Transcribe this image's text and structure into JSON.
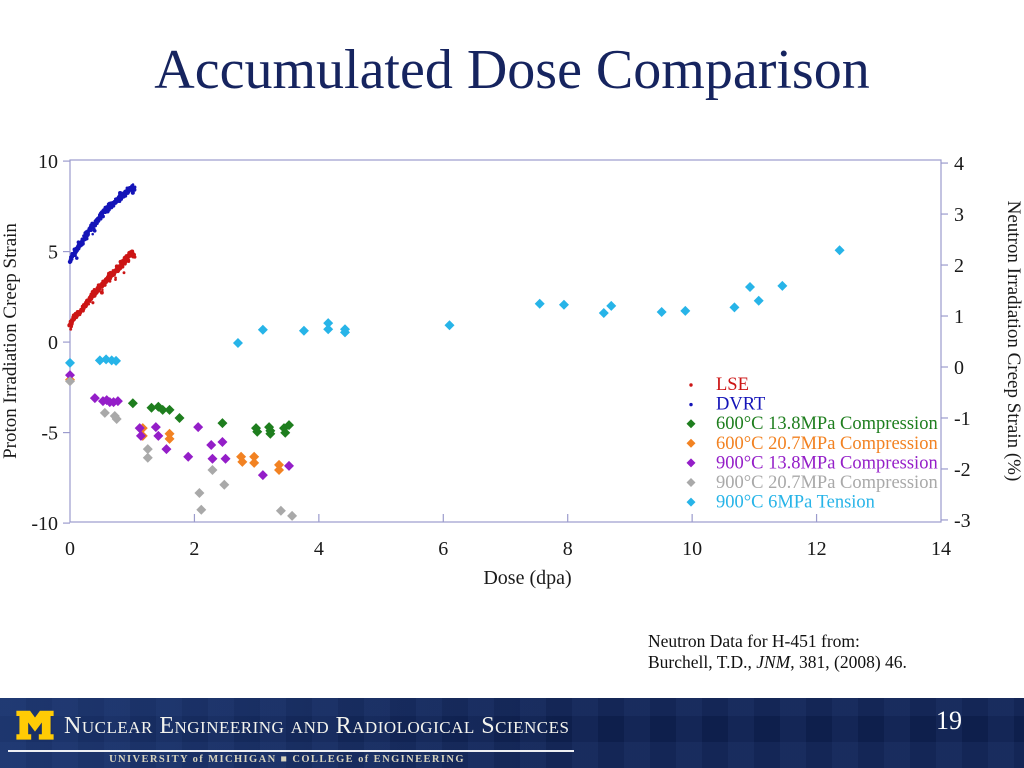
{
  "slide": {
    "title": "Accumulated Dose Comparison",
    "page_number": "19",
    "title_color": "#16245f",
    "citation": {
      "line1": "Neutron Data for H-451 from:",
      "line2_prefix": "Burchell, T.D., ",
      "line2_italic": "JNM",
      "line2_suffix": ", 381, (2008) 46."
    },
    "footer": {
      "department": "Nuclear Engineering and Radiological Sciences",
      "university_line": "UNIVERSITY of MICHIGAN   ■   COLLEGE of ENGINEERING",
      "logo": "university-of-michigan-block-m",
      "band_color": "#0e1f4c",
      "maize": "#ffcb05"
    }
  },
  "chart_data": {
    "type": "scatter",
    "title": "",
    "xlabel": "Dose (dpa)",
    "grid": false,
    "legend_position": "inside-right",
    "frame_color": "#9b9bcd",
    "text_color": "#1a1a1a",
    "xlim": [
      0,
      14
    ],
    "x_ticks": [
      0,
      2,
      4,
      6,
      8,
      10,
      12,
      14
    ],
    "left_axis": {
      "label": "Proton Irradiation Creep Strain",
      "ticks": [
        10,
        5,
        0,
        -5,
        -10
      ],
      "lim": [
        10.06,
        -9.94
      ]
    },
    "right_axis": {
      "label": "Neutron Irradiation Creep Strain (%)",
      "ticks": [
        4,
        3,
        2,
        1,
        0,
        -1,
        -2,
        -3
      ],
      "lim": [
        4.06,
        -3.04
      ]
    },
    "series": [
      {
        "name": "LSE",
        "color": "#cc1515",
        "axis": "left",
        "render": "noisy-line",
        "marker": "dot",
        "points": [
          [
            0,
            1.0
          ],
          [
            0.05,
            1.25
          ],
          [
            0.1,
            1.45
          ],
          [
            0.15,
            1.62
          ],
          [
            0.2,
            1.85
          ],
          [
            0.25,
            2.1
          ],
          [
            0.3,
            2.35
          ],
          [
            0.35,
            2.55
          ],
          [
            0.4,
            2.72
          ],
          [
            0.45,
            2.95
          ],
          [
            0.5,
            3.1
          ],
          [
            0.55,
            3.3
          ],
          [
            0.6,
            3.5
          ],
          [
            0.65,
            3.65
          ],
          [
            0.7,
            3.82
          ],
          [
            0.75,
            3.95
          ],
          [
            0.8,
            4.15
          ],
          [
            0.85,
            4.35
          ],
          [
            0.9,
            4.55
          ],
          [
            0.95,
            4.8
          ],
          [
            1.0,
            4.95
          ],
          [
            1.03,
            4.72
          ]
        ]
      },
      {
        "name": "DVRT",
        "color": "#1414b8",
        "axis": "left",
        "render": "noisy-line",
        "marker": "dot",
        "points": [
          [
            0,
            4.55
          ],
          [
            0.05,
            4.8
          ],
          [
            0.1,
            5.05
          ],
          [
            0.15,
            5.3
          ],
          [
            0.2,
            5.6
          ],
          [
            0.25,
            5.85
          ],
          [
            0.3,
            6.1
          ],
          [
            0.35,
            6.35
          ],
          [
            0.4,
            6.55
          ],
          [
            0.45,
            6.8
          ],
          [
            0.5,
            7.0
          ],
          [
            0.55,
            7.2
          ],
          [
            0.6,
            7.4
          ],
          [
            0.65,
            7.55
          ],
          [
            0.7,
            7.7
          ],
          [
            0.75,
            7.85
          ],
          [
            0.8,
            8.0
          ],
          [
            0.85,
            8.15
          ],
          [
            0.9,
            8.3
          ],
          [
            0.95,
            8.45
          ],
          [
            1.0,
            8.55
          ],
          [
            1.03,
            8.48
          ]
        ]
      },
      {
        "name": "600°C 13.8MPa Compression",
        "color": "#1e7e1e",
        "axis": "right",
        "render": "diamond",
        "marker": "diamond",
        "points": [
          [
            1.01,
            -0.71
          ],
          [
            1.31,
            -0.8
          ],
          [
            1.42,
            -0.78
          ],
          [
            1.49,
            -0.84
          ],
          [
            1.6,
            -0.84
          ],
          [
            1.76,
            -1.0
          ],
          [
            2.45,
            -1.1
          ],
          [
            2.99,
            -1.2
          ],
          [
            3.01,
            -1.27
          ],
          [
            3.2,
            -1.18
          ],
          [
            3.22,
            -1.25
          ],
          [
            3.22,
            -1.31
          ],
          [
            3.44,
            -1.2
          ],
          [
            3.46,
            -1.29
          ],
          [
            3.52,
            -1.14
          ]
        ]
      },
      {
        "name": "600°C 20.7MPa Compression",
        "color": "#f28222",
        "axis": "right",
        "render": "diamond",
        "marker": "diamond",
        "points": [
          [
            0,
            -0.25
          ],
          [
            1.17,
            -1.2
          ],
          [
            1.17,
            -1.35
          ],
          [
            1.6,
            -1.31
          ],
          [
            1.6,
            -1.41
          ],
          [
            2.75,
            -1.76
          ],
          [
            2.77,
            -1.86
          ],
          [
            2.96,
            -1.76
          ],
          [
            2.96,
            -1.88
          ],
          [
            3.36,
            -1.92
          ],
          [
            3.36,
            -2.02
          ]
        ]
      },
      {
        "name": "900°C 13.8MPa Compression",
        "color": "#941ec8",
        "axis": "right",
        "render": "diamond",
        "marker": "diamond",
        "points": [
          [
            0,
            -0.16
          ],
          [
            0.4,
            -0.61
          ],
          [
            0.53,
            -0.67
          ],
          [
            0.59,
            -0.65
          ],
          [
            0.64,
            -0.69
          ],
          [
            0.7,
            -0.69
          ],
          [
            0.77,
            -0.67
          ],
          [
            1.12,
            -1.2
          ],
          [
            1.14,
            -1.35
          ],
          [
            1.38,
            -1.18
          ],
          [
            1.42,
            -1.35
          ],
          [
            1.55,
            -1.61
          ],
          [
            1.9,
            -1.76
          ],
          [
            2.06,
            -1.18
          ],
          [
            2.27,
            -1.53
          ],
          [
            2.29,
            -1.8
          ],
          [
            2.45,
            -1.47
          ],
          [
            2.5,
            -1.8
          ],
          [
            3.1,
            -2.12
          ],
          [
            3.52,
            -1.94
          ]
        ]
      },
      {
        "name": "900°C 20.7MPa Compression",
        "color": "#a9a9a9",
        "axis": "right",
        "render": "diamond",
        "marker": "diamond",
        "points": [
          [
            0,
            -0.28
          ],
          [
            0.56,
            -0.9
          ],
          [
            0.72,
            -0.96
          ],
          [
            0.75,
            -1.02
          ],
          [
            1.25,
            -1.61
          ],
          [
            1.25,
            -1.78
          ],
          [
            2.08,
            -2.47
          ],
          [
            2.11,
            -2.8
          ],
          [
            2.29,
            -2.02
          ],
          [
            2.48,
            -2.31
          ],
          [
            3.39,
            -2.82
          ],
          [
            3.57,
            -2.92
          ]
        ]
      },
      {
        "name": "900°C 6MPa Tension",
        "color": "#27b4e8",
        "axis": "right",
        "render": "diamond",
        "marker": "diamond",
        "points": [
          [
            0,
            0.08
          ],
          [
            0.48,
            0.13
          ],
          [
            0.58,
            0.15
          ],
          [
            0.67,
            0.13
          ],
          [
            0.74,
            0.12
          ],
          [
            2.7,
            0.47
          ],
          [
            3.1,
            0.73
          ],
          [
            3.76,
            0.71
          ],
          [
            4.15,
            0.86
          ],
          [
            4.15,
            0.74
          ],
          [
            4.42,
            0.74
          ],
          [
            4.42,
            0.68
          ],
          [
            6.1,
            0.82
          ],
          [
            7.55,
            1.24
          ],
          [
            7.94,
            1.22
          ],
          [
            8.58,
            1.06
          ],
          [
            8.7,
            1.2
          ],
          [
            9.51,
            1.08
          ],
          [
            9.89,
            1.1
          ],
          [
            10.68,
            1.17
          ],
          [
            10.93,
            1.57
          ],
          [
            11.07,
            1.3
          ],
          [
            11.45,
            1.59
          ],
          [
            12.37,
            2.29
          ]
        ]
      }
    ]
  }
}
